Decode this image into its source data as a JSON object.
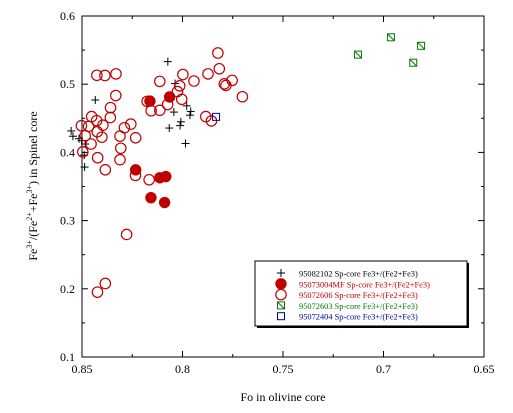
{
  "chart_data": {
    "type": "scatter",
    "xlabel": "Fo in olivine core",
    "ylabel": {
      "parts": [
        "Fe",
        "3+",
        "/(Fe",
        "2+",
        "+Fe",
        "3+",
        ") in Spinel core"
      ]
    },
    "xlim": [
      0.85,
      0.65
    ],
    "ylim": [
      0.1,
      0.6
    ],
    "x_ticks": [
      {
        "value": 0.85,
        "label": "0.85"
      },
      {
        "value": 0.8,
        "label": "0.8"
      },
      {
        "value": 0.75,
        "label": "0.75"
      },
      {
        "value": 0.7,
        "label": "0.7"
      },
      {
        "value": 0.65,
        "label": "0.65"
      }
    ],
    "y_ticks": [
      {
        "value": 0.1,
        "label": "0.1"
      },
      {
        "value": 0.2,
        "label": "0.2"
      },
      {
        "value": 0.3,
        "label": "0.3"
      },
      {
        "value": 0.4,
        "label": "0.4"
      },
      {
        "value": 0.5,
        "label": "0.5"
      },
      {
        "value": 0.6,
        "label": "0.6"
      }
    ],
    "grid": false,
    "legend_position": "bottom-right",
    "series": [
      {
        "name": "95082102 Sp-core Fe3+/(Fe2+Fe3)",
        "marker": "plus",
        "color": "#000000",
        "points": [
          [
            0.8515,
            0.4201
          ],
          [
            0.8545,
            0.4237
          ],
          [
            0.8487,
            0.3785
          ],
          [
            0.8484,
            0.4123
          ],
          [
            0.8502,
            0.4172
          ],
          [
            0.8489,
            0.3959
          ],
          [
            0.8554,
            0.4315
          ],
          [
            0.8434,
            0.4768
          ],
          [
            0.7979,
            0.4683
          ],
          [
            0.8037,
            0.5009
          ],
          [
            0.8073,
            0.5331
          ],
          [
            0.8066,
            0.4357
          ],
          [
            0.7985,
            0.4131
          ],
          [
            0.7959,
            0.4601
          ],
          [
            0.7963,
            0.4546
          ],
          [
            0.8043,
            0.4591
          ],
          [
            0.8008,
            0.4449
          ],
          [
            0.8012,
            0.4393
          ]
        ]
      },
      {
        "name": "95073004MF Sp-core Fe3+/(Fe2+Fe3)",
        "marker": "filled-circle",
        "color": "#c00000",
        "points": [
          [
            0.8162,
            0.4752
          ],
          [
            0.8064,
            0.4813
          ],
          [
            0.8233,
            0.3744
          ],
          [
            0.8157,
            0.3336
          ],
          [
            0.8113,
            0.3628
          ],
          [
            0.8083,
            0.3646
          ],
          [
            0.8089,
            0.3265
          ]
        ]
      },
      {
        "name": "95072606 Sp-core Fe3+/(Fe2+Fe3)",
        "marker": "open-circle",
        "color": "#c00000",
        "points": [
          [
            0.8331,
            0.5151
          ],
          [
            0.8426,
            0.5131
          ],
          [
            0.8386,
            0.5128
          ],
          [
            0.8332,
            0.4834
          ],
          [
            0.8358,
            0.4656
          ],
          [
            0.8359,
            0.4512
          ],
          [
            0.8427,
            0.4466
          ],
          [
            0.8452,
            0.4525
          ],
          [
            0.8396,
            0.4399
          ],
          [
            0.8401,
            0.4224
          ],
          [
            0.8424,
            0.4303
          ],
          [
            0.8467,
            0.4381
          ],
          [
            0.8503,
            0.4391
          ],
          [
            0.8484,
            0.4245
          ],
          [
            0.8496,
            0.4008
          ],
          [
            0.8455,
            0.4123
          ],
          [
            0.8422,
            0.3922
          ],
          [
            0.8384,
            0.3745
          ],
          [
            0.8307,
            0.4061
          ],
          [
            0.8311,
            0.3893
          ],
          [
            0.8311,
            0.4239
          ],
          [
            0.8289,
            0.4361
          ],
          [
            0.8257,
            0.4415
          ],
          [
            0.8233,
            0.4214
          ],
          [
            0.8176,
            0.4748
          ],
          [
            0.8156,
            0.4611
          ],
          [
            0.8113,
            0.4617
          ],
          [
            0.8113,
            0.5041
          ],
          [
            0.8004,
            0.4779
          ],
          [
            0.8025,
            0.4892
          ],
          [
            0.8014,
            0.4976
          ],
          [
            0.7943,
            0.5047
          ],
          [
            0.7873,
            0.5151
          ],
          [
            0.7817,
            0.5226
          ],
          [
            0.7824,
            0.5458
          ],
          [
            0.7784,
            0.4982
          ],
          [
            0.7792,
            0.5005
          ],
          [
            0.7753,
            0.5056
          ],
          [
            0.7702,
            0.4816
          ],
          [
            0.7884,
            0.4525
          ],
          [
            0.7856,
            0.4462
          ],
          [
            0.8074,
            0.4702
          ],
          [
            0.7998,
            0.5142
          ],
          [
            0.8234,
            0.3663
          ],
          [
            0.8166,
            0.3599
          ],
          [
            0.8278,
            0.2797
          ],
          [
            0.8384,
            0.2078
          ],
          [
            0.8423,
            0.1951
          ]
        ]
      },
      {
        "name": "95072603 Sp-core Fe3+/(Fe2+Fe3)",
        "marker": "crossed-square",
        "color": "#007a00",
        "points": [
          [
            0.7127,
            0.5434
          ],
          [
            0.6963,
            0.5688
          ],
          [
            0.6852,
            0.5315
          ],
          [
            0.6813,
            0.5563
          ]
        ]
      },
      {
        "name": "95072404 Sp-core Fe3+/(Fe2+Fe3)",
        "marker": "open-square",
        "color": "#0000a0",
        "points": [
          [
            0.7833,
            0.4521
          ]
        ]
      }
    ]
  },
  "legend": {
    "entries": [
      {
        "label": "95082102 Sp-core Fe3+/(Fe2+Fe3)",
        "color": "#000000"
      },
      {
        "label": "95073004MF Sp-core Fe3+/(Fe2+Fe3)",
        "color": "#c00000"
      },
      {
        "label": "95072606 Sp-core Fe3+/(Fe2+Fe3)",
        "color": "#c00000"
      },
      {
        "label": "95072603 Sp-core Fe3+/(Fe2+Fe3)",
        "color": "#007a00"
      },
      {
        "label": "95072404 Sp-core Fe3+/(Fe2+Fe3)",
        "color": "#0000a0"
      }
    ]
  }
}
